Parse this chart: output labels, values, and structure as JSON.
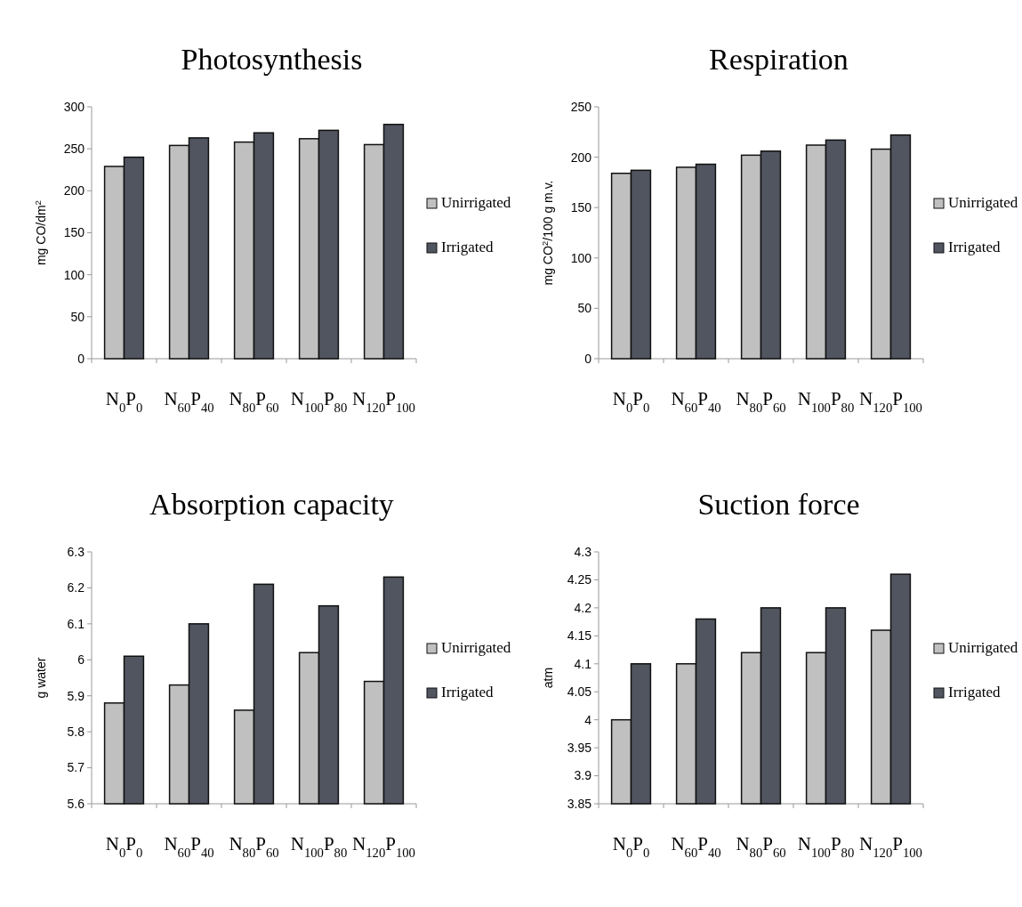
{
  "chart_data": [
    {
      "type": "bar",
      "title": "Photosynthesis",
      "ylabel": "mg CO/dm$^{2}$",
      "categories": [
        "N$_{0}$P$_{0}$",
        "N$_{60}$P$_{40}$",
        "N$_{80}$P$_{60}$",
        "N$_{100}$P$_{80}$",
        "N$_{120}$P$_{100}$"
      ],
      "series": [
        {
          "name": "Unirrigated",
          "color": "#c0c0c0",
          "values": [
            229,
            254,
            258,
            262,
            255
          ]
        },
        {
          "name": "Irrigated",
          "color": "#505560",
          "values": [
            240,
            263,
            269,
            272,
            279
          ]
        }
      ],
      "ylim": [
        0,
        300
      ],
      "yticks": [
        0,
        50,
        100,
        150,
        200,
        250,
        300
      ],
      "grid": false,
      "legend": "right"
    },
    {
      "type": "bar",
      "title": "Respiration",
      "ylabel": "mg CO$^{2}$/100 g m.v.",
      "categories": [
        "N$_{0}$P$_{0}$",
        "N$_{60}$P$_{40}$",
        "N$_{80}$P$_{60}$",
        "N$_{100}$P$_{80}$",
        "N$_{120}$P$_{100}$"
      ],
      "series": [
        {
          "name": "Unirrigated",
          "color": "#c0c0c0",
          "values": [
            184,
            190,
            202,
            212,
            208
          ]
        },
        {
          "name": "Irrigated",
          "color": "#505560",
          "values": [
            187,
            193,
            206,
            217,
            222
          ]
        }
      ],
      "ylim": [
        0,
        250
      ],
      "yticks": [
        0,
        50,
        100,
        150,
        200,
        250
      ],
      "grid": false,
      "legend": "right"
    },
    {
      "type": "bar",
      "title": "Absorption capacity",
      "ylabel": "g water",
      "categories": [
        "N$_{0}$P$_{0}$",
        "N$_{60}$P$_{40}$",
        "N$_{80}$P$_{60}$",
        "N$_{100}$P$_{80}$",
        "N$_{120}$P$_{100}$"
      ],
      "series": [
        {
          "name": "Unirrigated",
          "color": "#c0c0c0",
          "values": [
            5.88,
            5.93,
            5.86,
            6.02,
            5.94
          ]
        },
        {
          "name": "Irrigated",
          "color": "#505560",
          "values": [
            6.01,
            6.1,
            6.21,
            6.15,
            6.23
          ]
        }
      ],
      "ylim": [
        5.6,
        6.3
      ],
      "yticks": [
        5.6,
        5.7,
        5.8,
        5.9,
        6,
        6.1,
        6.2,
        6.3
      ],
      "grid": false,
      "legend": "right"
    },
    {
      "type": "bar",
      "title": "Suction force",
      "ylabel": "atm",
      "categories": [
        "N$_{0}$P$_{0}$",
        "N$_{60}$P$_{40}$",
        "N$_{80}$P$_{60}$",
        "N$_{100}$P$_{80}$",
        "N$_{120}$P$_{100}$"
      ],
      "series": [
        {
          "name": "Unirrigated",
          "color": "#c0c0c0",
          "values": [
            4,
            4.1,
            4.12,
            4.12,
            4.16
          ]
        },
        {
          "name": "Irrigated",
          "color": "#505560",
          "values": [
            4.1,
            4.18,
            4.2,
            4.2,
            4.26
          ]
        }
      ],
      "ylim": [
        3.85,
        4.3
      ],
      "yticks": [
        3.85,
        3.9,
        3.95,
        4,
        4.05,
        4.1,
        4.15,
        4.2,
        4.25,
        4.3
      ],
      "grid": false,
      "legend": "right"
    }
  ]
}
